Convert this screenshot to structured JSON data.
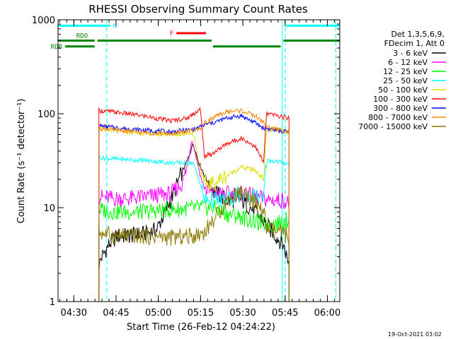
{
  "chart_data": {
    "type": "line",
    "title": "RHESSI Observing Summary Count Rates",
    "xlabel": "Start Time (26-Feb-12 04:24:22)",
    "ylabel": "Count Rate (s⁻¹ detector⁻¹)",
    "y_scale": "log",
    "ylim": [
      1,
      1000
    ],
    "xlim_minutes": [
      0,
      100
    ],
    "x_ticks": [
      {
        "label": "04:30",
        "t": 5.6
      },
      {
        "label": "04:45",
        "t": 20.6
      },
      {
        "label": "05:00",
        "t": 35.6
      },
      {
        "label": "05:15",
        "t": 50.6
      },
      {
        "label": "05:30",
        "t": 65.6
      },
      {
        "label": "05:45",
        "t": 80.6
      },
      {
        "label": "06:00",
        "t": 95.6
      }
    ],
    "y_ticks": [
      {
        "label": "1",
        "v": 1
      },
      {
        "label": "10",
        "v": 10
      },
      {
        "label": "100",
        "v": 100
      },
      {
        "label": "1000",
        "v": 1000
      }
    ],
    "legend_header": [
      "Det 1,3,5,6,9,",
      "FDecim 1, Att 0"
    ],
    "legend_placement": "right",
    "footer_date": "19-Oct-2021 03:02",
    "data_gaps": [
      {
        "start": 0,
        "end": 14.5
      },
      {
        "start": 82.2,
        "end": 100
      }
    ],
    "series": [
      {
        "name": "3 - 6 keV",
        "color": "#000000",
        "x": [
          14.5,
          15,
          18,
          21,
          25,
          30,
          35,
          40,
          44,
          46,
          47,
          48,
          49,
          50,
          52,
          55,
          60,
          65,
          70,
          75,
          80,
          82
        ],
        "y": [
          2.2,
          2.8,
          4.0,
          5.0,
          5.0,
          5.2,
          5.8,
          12,
          24,
          32,
          40,
          48,
          38,
          30,
          22,
          15,
          12,
          12,
          9,
          6,
          4,
          2.5
        ]
      },
      {
        "name": "6 - 12 keV",
        "color": "#ff00ff",
        "x": [
          14.5,
          15,
          20,
          25,
          30,
          35,
          40,
          44,
          46,
          47.5,
          49,
          50.5,
          52,
          55,
          60,
          65,
          70,
          75,
          80,
          82
        ],
        "y": [
          13,
          13,
          12.5,
          12.5,
          13,
          13.5,
          14,
          18,
          28,
          55,
          35,
          22,
          16,
          14,
          14,
          14,
          13,
          12,
          12,
          11
        ]
      },
      {
        "name": "12 - 25 keV",
        "color": "#00ff00",
        "x": [
          14.5,
          20,
          30,
          40,
          50,
          55,
          60,
          65,
          70,
          75,
          80,
          82
        ],
        "y": [
          9.5,
          9,
          9,
          9.5,
          10,
          10,
          8.5,
          8,
          7,
          6.5,
          7,
          7.5
        ]
      },
      {
        "name": "25 - 50 keV",
        "color": "#00ffff",
        "x": [
          14.5,
          20,
          30,
          40,
          48,
          50.5,
          52,
          55,
          60,
          65,
          70,
          73,
          74,
          78,
          82
        ],
        "y": [
          34,
          33,
          32,
          30,
          30,
          18,
          12,
          12,
          12,
          14,
          13,
          12,
          32,
          31,
          29
        ]
      },
      {
        "name": "50 - 100 keV",
        "color": "#dddd00",
        "x": [
          14.5,
          20,
          30,
          40,
          48,
          50.5,
          52,
          55,
          60,
          65,
          70,
          73,
          74,
          78,
          82
        ],
        "y": [
          70,
          66,
          62,
          60,
          62,
          26,
          18,
          18,
          22,
          27,
          25,
          20,
          68,
          66,
          64
        ]
      },
      {
        "name": "100 - 300 keV",
        "color": "#ff0000",
        "x": [
          14.5,
          20,
          30,
          40,
          46,
          49,
          50.5,
          52,
          55,
          60,
          65,
          70,
          73,
          74,
          78,
          82
        ],
        "y": [
          108,
          104,
          95,
          84,
          90,
          105,
          112,
          35,
          38,
          48,
          55,
          45,
          30,
          100,
          95,
          90
        ]
      },
      {
        "name": "300 - 800 keV",
        "color": "#0000ff",
        "x": [
          14.5,
          20,
          30,
          40,
          48,
          50.5,
          52,
          55,
          60,
          65,
          70,
          73,
          74,
          78,
          82
        ],
        "y": [
          74,
          71,
          67,
          64,
          68,
          72,
          76,
          80,
          90,
          95,
          80,
          70,
          70,
          66,
          63
        ]
      },
      {
        "name": "800 - 7000 keV",
        "color": "#ff8800",
        "x": [
          14.5,
          20,
          30,
          40,
          48,
          50.5,
          52,
          55,
          60,
          65,
          70,
          73,
          74,
          78,
          82
        ],
        "y": [
          70,
          67,
          63,
          61,
          66,
          70,
          80,
          90,
          105,
          108,
          95,
          80,
          72,
          68,
          65
        ]
      },
      {
        "name": "7000 - 15000 keV",
        "color": "#8a7a00",
        "x": [
          14.5,
          20,
          30,
          40,
          48,
          52,
          56,
          60,
          64,
          67,
          70,
          73,
          74,
          78,
          82
        ],
        "y": [
          5.5,
          5,
          5,
          4.8,
          5,
          5.5,
          8,
          12,
          14.5,
          14,
          11,
          9,
          6,
          5.5,
          5
        ]
      }
    ],
    "flags": [
      {
        "name": "N",
        "color": "#00ffff",
        "label_color": "#00ffff",
        "label_side": "right",
        "level": 865,
        "segments": [
          [
            0,
            18.5
          ],
          [
            81,
            100
          ]
        ]
      },
      {
        "name": "RDO",
        "color": "#008800",
        "label_color": "#008800",
        "label_side": "mid-first",
        "level": 600,
        "segments": [
          [
            0,
            13
          ],
          [
            14,
            54.5
          ],
          [
            80,
            100
          ]
        ]
      },
      {
        "name": "RDB",
        "color": "#008800",
        "label_color": "#008800",
        "label_side": "left",
        "level": 520,
        "segments": [
          [
            2.5,
            13
          ],
          [
            55,
            79
          ]
        ]
      },
      {
        "name": "F",
        "color": "#ff0000",
        "label_color": "#ff0000",
        "label_side": "left",
        "level": 720,
        "segments": [
          [
            42,
            52.5
          ]
        ]
      }
    ],
    "vlines": [
      {
        "t": 17.3,
        "color": "#00ffff",
        "style": "dashed"
      },
      {
        "t": 80.6,
        "color": "#00ffff",
        "style": "dashed"
      },
      {
        "t": 98.6,
        "color": "#00ffff",
        "style": "dashed"
      },
      {
        "t": 79.6,
        "color": "#00ffff",
        "style": "solid"
      }
    ]
  }
}
